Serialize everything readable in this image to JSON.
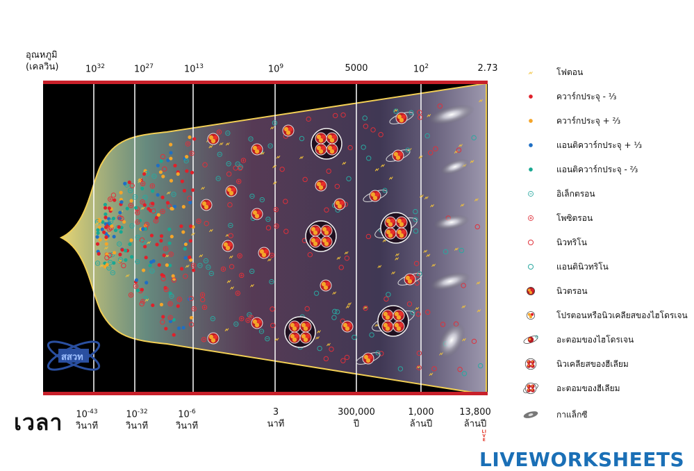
{
  "header": {
    "temperature_label_line1": "อุณหภูมิ",
    "temperature_label_line2": "(เคลวิน)",
    "temperatures": [
      {
        "base": "10",
        "exp": "32"
      },
      {
        "base": "10",
        "exp": "27"
      },
      {
        "base": "10",
        "exp": "13"
      },
      {
        "base": "10",
        "exp": "9"
      },
      {
        "base": "5000",
        "exp": ""
      },
      {
        "base": "10",
        "exp": "2"
      },
      {
        "base": "2.73",
        "exp": ""
      }
    ]
  },
  "timeline": {
    "title": "เวลา",
    "times": [
      {
        "base": "10",
        "exp": "-43",
        "unit": "วินาที"
      },
      {
        "base": "10",
        "exp": "-32",
        "unit": "วินาที"
      },
      {
        "base": "10",
        "exp": "-6",
        "unit": "วินาที"
      },
      {
        "base": "3",
        "exp": "",
        "unit": "นาที"
      },
      {
        "base": "300,000",
        "exp": "",
        "unit": "ปี"
      },
      {
        "base": "1,000",
        "exp": "",
        "unit": "ล้านปี"
      },
      {
        "base": "13,800",
        "exp": "",
        "unit": "ล้านปี"
      }
    ]
  },
  "legend": [
    {
      "icon": "photon-icon",
      "label": "โฟตอน"
    },
    {
      "icon": "quark-minus-third-icon",
      "label": "ควาร์กประจุ - ⅓",
      "color": "#e0202a"
    },
    {
      "icon": "quark-plus-two-thirds-icon",
      "label": "ควาร์กประจุ + ⅔",
      "color": "#f4a52a"
    },
    {
      "icon": "antiquark-plus-third-icon",
      "label": "แอนติควาร์กประจุ + ⅓",
      "color": "#1f6fc4"
    },
    {
      "icon": "antiquark-minus-two-thirds-icon",
      "label": "แอนติควาร์กประจุ - ⅔",
      "color": "#19a892"
    },
    {
      "icon": "electron-icon",
      "label": "อิเล็กตรอน"
    },
    {
      "icon": "positron-icon",
      "label": "โพซิตรอน"
    },
    {
      "icon": "neutrino-icon",
      "label": "นิวทริโน"
    },
    {
      "icon": "antineutrino-icon",
      "label": "แอนตินิวทริโน"
    },
    {
      "icon": "neutron-icon",
      "label": "นิวตรอน"
    },
    {
      "icon": "proton-icon",
      "label": "โปรตอนหรือนิวเคลียสของไฮโดรเจน"
    },
    {
      "icon": "hydrogen-atom-icon",
      "label": "อะตอมของไฮโดรเจน"
    },
    {
      "icon": "helium-nucleus-icon",
      "label": "นิวเคลียสของฮีเลียม"
    },
    {
      "icon": "helium-atom-icon",
      "label": "อะตอมของฮีเลียม"
    },
    {
      "icon": "galaxy-icon",
      "label": "กาแล็กซี"
    }
  ],
  "colors": {
    "frame": "#c8202a",
    "background": "#000000",
    "quark_red": "#e0202a",
    "quark_orange": "#f4a52a",
    "antiquark_blue": "#1f6fc4",
    "antiquark_teal": "#19a892",
    "cone_edge": "#f2cf55"
  },
  "logos": {
    "watermark": "สสวท",
    "brand_badge": "LIVE",
    "brand": "LIVEWORKSHEETS"
  }
}
